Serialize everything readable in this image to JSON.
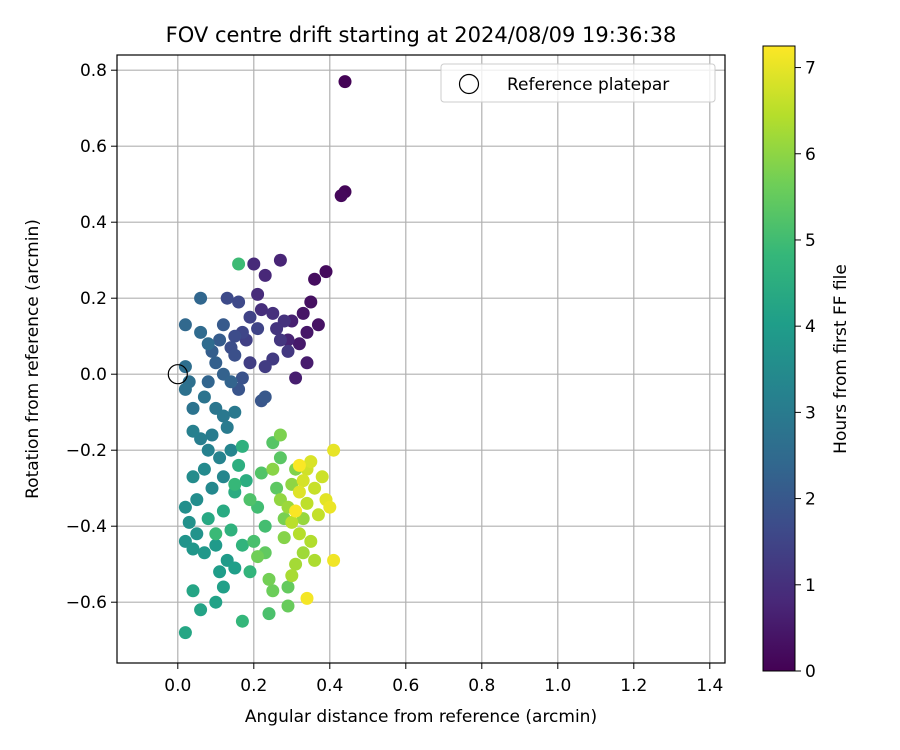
{
  "chart_data": {
    "type": "scatter",
    "title": "FOV centre drift starting at 2024/08/09 19:36:38",
    "xlabel": "Angular distance from reference (arcmin)",
    "ylabel": "Rotation from reference (arcmin)",
    "xlim": [
      -0.16,
      1.44
    ],
    "ylim": [
      -0.76,
      0.84
    ],
    "xticks": [
      "0.0",
      "0.2",
      "0.4",
      "0.6",
      "0.8",
      "1.0",
      "1.2",
      "1.4"
    ],
    "yticks": [
      "−0.6",
      "−0.4",
      "−0.2",
      "0.0",
      "0.2",
      "0.4",
      "0.6",
      "0.8"
    ],
    "xtick_values": [
      0.0,
      0.2,
      0.4,
      0.6,
      0.8,
      1.0,
      1.2,
      1.4
    ],
    "ytick_values": [
      -0.6,
      -0.4,
      -0.2,
      0.0,
      0.2,
      0.4,
      0.6,
      0.8
    ],
    "grid": true,
    "legend": {
      "label": "Reference platepar",
      "placement": "top-right"
    },
    "reference_point": {
      "x": 0.0,
      "y": 0.0
    },
    "colorbar": {
      "label": "Hours from first FF file",
      "range": [
        0,
        7.25
      ],
      "ticks": [
        "0",
        "1",
        "2",
        "3",
        "4",
        "5",
        "6",
        "7"
      ],
      "tick_values": [
        0,
        1,
        2,
        3,
        4,
        5,
        6,
        7
      ],
      "colormap": "viridis",
      "colors": [
        "#440154",
        "#482878",
        "#3e4989",
        "#31688e",
        "#26828e",
        "#1f9e89",
        "#35b779",
        "#6ece58",
        "#b5de2b",
        "#fde725"
      ]
    },
    "series": [
      {
        "points": [
          {
            "x": 0.44,
            "y": 0.77,
            "t": 0.05
          },
          {
            "x": 0.44,
            "y": 0.48,
            "t": 0.1
          },
          {
            "x": 0.43,
            "y": 0.47,
            "t": 0.15
          },
          {
            "x": 0.39,
            "y": 0.27,
            "t": 0.2
          },
          {
            "x": 0.36,
            "y": 0.25,
            "t": 0.25
          },
          {
            "x": 0.35,
            "y": 0.19,
            "t": 0.3
          },
          {
            "x": 0.37,
            "y": 0.13,
            "t": 0.35
          },
          {
            "x": 0.33,
            "y": 0.16,
            "t": 0.4
          },
          {
            "x": 0.34,
            "y": 0.11,
            "t": 0.45
          },
          {
            "x": 0.32,
            "y": 0.08,
            "t": 0.5
          },
          {
            "x": 0.34,
            "y": 0.03,
            "t": 0.55
          },
          {
            "x": 0.31,
            "y": -0.01,
            "t": 0.6
          },
          {
            "x": 0.3,
            "y": 0.14,
            "t": 0.65
          },
          {
            "x": 0.29,
            "y": 0.09,
            "t": 0.7
          },
          {
            "x": 0.27,
            "y": 0.3,
            "t": 0.75
          },
          {
            "x": 0.23,
            "y": 0.26,
            "t": 0.8
          },
          {
            "x": 0.2,
            "y": 0.29,
            "t": 0.85
          },
          {
            "x": 0.21,
            "y": 0.21,
            "t": 0.9
          },
          {
            "x": 0.22,
            "y": 0.17,
            "t": 0.95
          },
          {
            "x": 0.25,
            "y": 0.16,
            "t": 1.0
          },
          {
            "x": 0.28,
            "y": 0.14,
            "t": 1.05
          },
          {
            "x": 0.26,
            "y": 0.12,
            "t": 1.1
          },
          {
            "x": 0.27,
            "y": 0.09,
            "t": 1.15
          },
          {
            "x": 0.29,
            "y": 0.06,
            "t": 1.2
          },
          {
            "x": 0.25,
            "y": 0.04,
            "t": 1.25
          },
          {
            "x": 0.23,
            "y": 0.02,
            "t": 1.3
          },
          {
            "x": 0.19,
            "y": 0.03,
            "t": 1.35
          },
          {
            "x": 0.18,
            "y": 0.09,
            "t": 1.4
          },
          {
            "x": 0.19,
            "y": 0.15,
            "t": 1.45
          },
          {
            "x": 0.21,
            "y": 0.12,
            "t": 1.5
          },
          {
            "x": 0.17,
            "y": 0.11,
            "t": 1.55
          },
          {
            "x": 0.16,
            "y": 0.19,
            "t": 1.6
          },
          {
            "x": 0.13,
            "y": 0.2,
            "t": 1.65
          },
          {
            "x": 0.15,
            "y": 0.1,
            "t": 1.7
          },
          {
            "x": 0.14,
            "y": 0.07,
            "t": 1.75
          },
          {
            "x": 0.15,
            "y": 0.05,
            "t": 1.8
          },
          {
            "x": 0.17,
            "y": -0.01,
            "t": 1.85
          },
          {
            "x": 0.16,
            "y": -0.04,
            "t": 1.9
          },
          {
            "x": 0.22,
            "y": -0.07,
            "t": 1.95
          },
          {
            "x": 0.23,
            "y": -0.06,
            "t": 2.0
          },
          {
            "x": 0.12,
            "y": 0.13,
            "t": 2.05
          },
          {
            "x": 0.11,
            "y": 0.09,
            "t": 2.1
          },
          {
            "x": 0.09,
            "y": 0.06,
            "t": 2.15
          },
          {
            "x": 0.1,
            "y": 0.03,
            "t": 2.2
          },
          {
            "x": 0.12,
            "y": 0.0,
            "t": 2.25
          },
          {
            "x": 0.14,
            "y": -0.02,
            "t": 2.3
          },
          {
            "x": 0.08,
            "y": -0.02,
            "t": 2.35
          },
          {
            "x": 0.06,
            "y": 0.2,
            "t": 2.4
          },
          {
            "x": 0.02,
            "y": 0.13,
            "t": 2.45
          },
          {
            "x": 0.06,
            "y": 0.11,
            "t": 2.5
          },
          {
            "x": 0.08,
            "y": 0.08,
            "t": 2.55
          },
          {
            "x": 0.02,
            "y": 0.02,
            "t": 2.6
          },
          {
            "x": 0.03,
            "y": -0.02,
            "t": 2.65
          },
          {
            "x": 0.02,
            "y": -0.04,
            "t": 2.7
          },
          {
            "x": 0.04,
            "y": -0.09,
            "t": 2.75
          },
          {
            "x": 0.07,
            "y": -0.06,
            "t": 2.8
          },
          {
            "x": 0.1,
            "y": -0.09,
            "t": 2.85
          },
          {
            "x": 0.12,
            "y": -0.11,
            "t": 2.9
          },
          {
            "x": 0.15,
            "y": -0.1,
            "t": 2.95
          },
          {
            "x": 0.13,
            "y": -0.14,
            "t": 3.0
          },
          {
            "x": 0.09,
            "y": -0.16,
            "t": 3.05
          },
          {
            "x": 0.06,
            "y": -0.17,
            "t": 3.1
          },
          {
            "x": 0.04,
            "y": -0.15,
            "t": 3.15
          },
          {
            "x": 0.08,
            "y": -0.2,
            "t": 3.2
          },
          {
            "x": 0.11,
            "y": -0.22,
            "t": 3.25
          },
          {
            "x": 0.14,
            "y": -0.2,
            "t": 3.3
          },
          {
            "x": 0.12,
            "y": -0.27,
            "t": 3.35
          },
          {
            "x": 0.09,
            "y": -0.3,
            "t": 3.4
          },
          {
            "x": 0.07,
            "y": -0.25,
            "t": 3.45
          },
          {
            "x": 0.04,
            "y": -0.27,
            "t": 3.5
          },
          {
            "x": 0.05,
            "y": -0.33,
            "t": 3.55
          },
          {
            "x": 0.02,
            "y": -0.35,
            "t": 3.6
          },
          {
            "x": 0.03,
            "y": -0.39,
            "t": 3.65
          },
          {
            "x": 0.05,
            "y": -0.42,
            "t": 3.7
          },
          {
            "x": 0.02,
            "y": -0.44,
            "t": 3.75
          },
          {
            "x": 0.04,
            "y": -0.46,
            "t": 3.8
          },
          {
            "x": 0.07,
            "y": -0.47,
            "t": 3.85
          },
          {
            "x": 0.1,
            "y": -0.45,
            "t": 3.9
          },
          {
            "x": 0.13,
            "y": -0.49,
            "t": 3.95
          },
          {
            "x": 0.11,
            "y": -0.52,
            "t": 4.0
          },
          {
            "x": 0.15,
            "y": -0.51,
            "t": 4.05
          },
          {
            "x": 0.12,
            "y": -0.56,
            "t": 4.1
          },
          {
            "x": 0.1,
            "y": -0.6,
            "t": 4.15
          },
          {
            "x": 0.06,
            "y": -0.62,
            "t": 4.2
          },
          {
            "x": 0.04,
            "y": -0.57,
            "t": 4.25
          },
          {
            "x": 0.02,
            "y": -0.68,
            "t": 4.3
          },
          {
            "x": 0.08,
            "y": -0.38,
            "t": 4.35
          },
          {
            "x": 0.12,
            "y": -0.36,
            "t": 4.4
          },
          {
            "x": 0.15,
            "y": -0.31,
            "t": 4.45
          },
          {
            "x": 0.18,
            "y": -0.28,
            "t": 4.5
          },
          {
            "x": 0.16,
            "y": -0.24,
            "t": 4.55
          },
          {
            "x": 0.17,
            "y": -0.19,
            "t": 4.6
          },
          {
            "x": 0.14,
            "y": -0.41,
            "t": 4.65
          },
          {
            "x": 0.17,
            "y": -0.45,
            "t": 4.7
          },
          {
            "x": 0.19,
            "y": -0.52,
            "t": 4.75
          },
          {
            "x": 0.17,
            "y": -0.65,
            "t": 4.8
          },
          {
            "x": 0.15,
            "y": -0.29,
            "t": 4.85
          },
          {
            "x": 0.1,
            "y": -0.42,
            "t": 4.9
          },
          {
            "x": 0.16,
            "y": 0.29,
            "t": 4.95
          },
          {
            "x": 0.21,
            "y": -0.35,
            "t": 5.0
          },
          {
            "x": 0.23,
            "y": -0.4,
            "t": 5.05
          },
          {
            "x": 0.2,
            "y": -0.44,
            "t": 5.1
          },
          {
            "x": 0.24,
            "y": -0.63,
            "t": 5.15
          },
          {
            "x": 0.19,
            "y": -0.33,
            "t": 5.2
          },
          {
            "x": 0.22,
            "y": -0.26,
            "t": 5.25
          },
          {
            "x": 0.25,
            "y": -0.18,
            "t": 5.3
          },
          {
            "x": 0.27,
            "y": -0.22,
            "t": 5.35
          },
          {
            "x": 0.26,
            "y": -0.3,
            "t": 5.4
          },
          {
            "x": 0.23,
            "y": -0.47,
            "t": 5.45
          },
          {
            "x": 0.29,
            "y": -0.56,
            "t": 5.5
          },
          {
            "x": 0.29,
            "y": -0.61,
            "t": 5.55
          },
          {
            "x": 0.25,
            "y": -0.57,
            "t": 5.6
          },
          {
            "x": 0.21,
            "y": -0.48,
            "t": 5.65
          },
          {
            "x": 0.24,
            "y": -0.54,
            "t": 5.7
          },
          {
            "x": 0.28,
            "y": -0.38,
            "t": 5.75
          },
          {
            "x": 0.27,
            "y": -0.16,
            "t": 5.8
          },
          {
            "x": 0.31,
            "y": -0.25,
            "t": 5.85
          },
          {
            "x": 0.28,
            "y": -0.43,
            "t": 5.9
          },
          {
            "x": 0.25,
            "y": -0.25,
            "t": 5.95
          },
          {
            "x": 0.3,
            "y": -0.29,
            "t": 6.0
          },
          {
            "x": 0.27,
            "y": -0.33,
            "t": 6.05
          },
          {
            "x": 0.33,
            "y": -0.38,
            "t": 6.1
          },
          {
            "x": 0.29,
            "y": -0.35,
            "t": 6.15
          },
          {
            "x": 0.33,
            "y": -0.47,
            "t": 6.2
          },
          {
            "x": 0.31,
            "y": -0.5,
            "t": 6.25
          },
          {
            "x": 0.3,
            "y": -0.53,
            "t": 6.3
          },
          {
            "x": 0.36,
            "y": -0.49,
            "t": 6.35
          },
          {
            "x": 0.35,
            "y": -0.44,
            "t": 6.4
          },
          {
            "x": 0.32,
            "y": -0.42,
            "t": 6.45
          },
          {
            "x": 0.3,
            "y": -0.39,
            "t": 6.5
          },
          {
            "x": 0.34,
            "y": -0.34,
            "t": 6.55
          },
          {
            "x": 0.37,
            "y": -0.37,
            "t": 6.6
          },
          {
            "x": 0.36,
            "y": -0.3,
            "t": 6.65
          },
          {
            "x": 0.38,
            "y": -0.27,
            "t": 6.7
          },
          {
            "x": 0.34,
            "y": -0.25,
            "t": 6.75
          },
          {
            "x": 0.33,
            "y": -0.28,
            "t": 6.8
          },
          {
            "x": 0.35,
            "y": -0.23,
            "t": 6.85
          },
          {
            "x": 0.32,
            "y": -0.31,
            "t": 6.9
          },
          {
            "x": 0.39,
            "y": -0.33,
            "t": 6.95
          },
          {
            "x": 0.41,
            "y": -0.2,
            "t": 7.0
          },
          {
            "x": 0.4,
            "y": -0.35,
            "t": 7.05
          },
          {
            "x": 0.41,
            "y": -0.49,
            "t": 7.1
          },
          {
            "x": 0.34,
            "y": -0.59,
            "t": 7.15
          },
          {
            "x": 0.31,
            "y": -0.36,
            "t": 7.2
          },
          {
            "x": 0.32,
            "y": -0.24,
            "t": 7.22
          }
        ]
      }
    ]
  }
}
